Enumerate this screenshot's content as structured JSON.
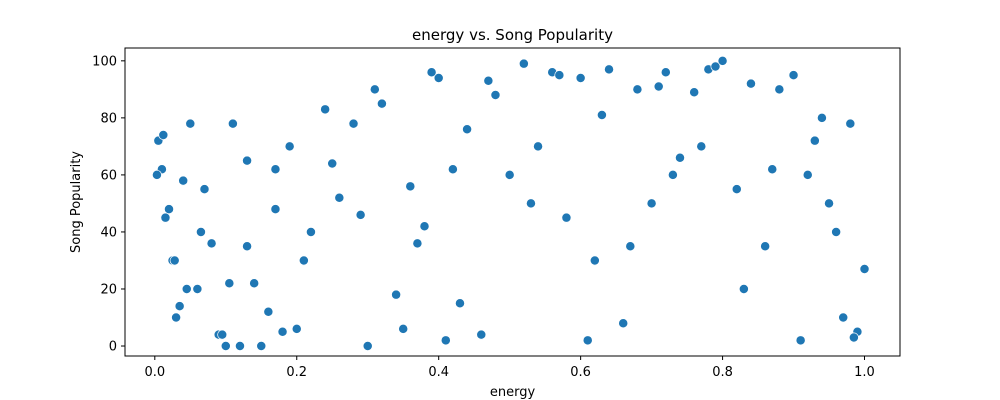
{
  "chart_data": {
    "type": "scatter",
    "title": "energy vs. Song Popularity",
    "xlabel": "energy",
    "ylabel": "Song Popularity",
    "xlim": [
      -0.042,
      1.05
    ],
    "ylim": [
      -3.5,
      104.5
    ],
    "xticks": [
      0.0,
      0.2,
      0.4,
      0.6,
      0.8,
      1.0
    ],
    "xtick_labels": [
      "0.0",
      "0.2",
      "0.4",
      "0.6",
      "0.8",
      "1.0"
    ],
    "yticks": [
      0,
      20,
      40,
      60,
      80,
      100
    ],
    "ytick_labels": [
      "0",
      "20",
      "40",
      "60",
      "80",
      "100"
    ],
    "grid": false,
    "legend": "none",
    "marker_color": "#1f77b4",
    "marker_edge_color": "#ffffff",
    "series": [
      {
        "x": [
          0.005,
          0.01,
          0.012,
          0.02,
          0.025,
          0.03,
          0.035,
          0.04,
          0.05,
          0.06,
          0.07,
          0.08,
          0.09,
          0.1,
          0.11,
          0.12,
          0.13,
          0.14,
          0.15,
          0.16,
          0.17,
          0.18,
          0.19,
          0.2,
          0.22,
          0.24,
          0.26,
          0.28,
          0.3,
          0.32,
          0.34,
          0.36,
          0.38,
          0.4,
          0.42,
          0.44,
          0.46,
          0.48,
          0.5,
          0.52,
          0.54,
          0.56,
          0.58,
          0.6,
          0.62,
          0.64,
          0.66,
          0.68,
          0.7,
          0.72,
          0.74,
          0.76,
          0.78,
          0.8,
          0.82,
          0.84,
          0.86,
          0.88,
          0.9,
          0.92,
          0.94,
          0.96,
          0.98,
          0.99,
          1.0,
          0.003,
          0.015,
          0.028,
          0.045,
          0.065,
          0.095,
          0.105,
          0.13,
          0.17,
          0.21,
          0.25,
          0.29,
          0.31,
          0.35,
          0.37,
          0.39,
          0.41,
          0.43,
          0.47,
          0.53,
          0.57,
          0.61,
          0.63,
          0.67,
          0.71,
          0.73,
          0.77,
          0.79,
          0.83,
          0.87,
          0.91,
          0.93,
          0.95,
          0.97,
          0.985
        ],
        "y": [
          72,
          62,
          74,
          48,
          30,
          10,
          14,
          58,
          78,
          20,
          55,
          36,
          4,
          0,
          78,
          0,
          65,
          22,
          0,
          12,
          62,
          5,
          70,
          6,
          40,
          83,
          52,
          78,
          0,
          85,
          18,
          56,
          42,
          94,
          62,
          76,
          4,
          88,
          60,
          99,
          70,
          96,
          45,
          94,
          30,
          97,
          8,
          90,
          50,
          96,
          66,
          89,
          97,
          100,
          55,
          92,
          35,
          90,
          95,
          60,
          80,
          40,
          78,
          5,
          27,
          60,
          45,
          30,
          20,
          40,
          4,
          22,
          35,
          48,
          30,
          64,
          46,
          90,
          6,
          36,
          96,
          2,
          15,
          93,
          50,
          95,
          2,
          81,
          35,
          91,
          60,
          70,
          98,
          20,
          62,
          2,
          72,
          50,
          10,
          3
        ]
      }
    ]
  }
}
